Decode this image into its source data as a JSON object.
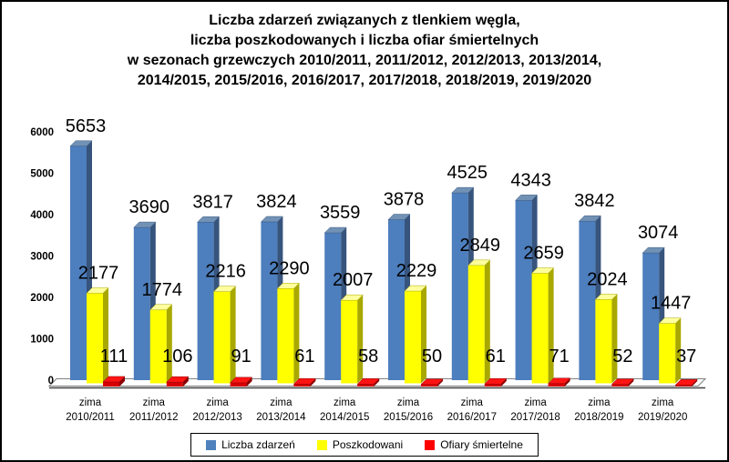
{
  "frame": {
    "background": "#FFFFFF",
    "border_color": "#000000"
  },
  "title_lines": [
    "Liczba zdarzeń związanych z tlenkiem węgla,",
    "liczba poszkodowanych i liczba ofiar śmiertelnych",
    "w sezonach grzewczych 2010/2011, 2011/2012, 2012/2013, 2013/2014,",
    "2014/2015, 2015/2016, 2016/2017, 2017/2018, 2018/2019, 2019/2020"
  ],
  "chart_data": {
    "type": "bar",
    "effect": "3d-column",
    "title": "Liczba zdarzeń związanych z tlenkiem węgla, liczba poszkodowanych i liczba ofiar śmiertelnych w sezonach grzewczych 2010/2011 - 2019/2020",
    "categories": [
      "zima 2010/2011",
      "zima 2011/2012",
      "zima 2012/2013",
      "zima 2013/2014",
      "zima 2014/2015",
      "zima 2015/2016",
      "zima 2016/2017",
      "zima 2017/2018",
      "zima 2018/2019",
      "zima 2019/2020"
    ],
    "series": [
      {
        "name": "Liczba zdarzeń",
        "values": [
          5653,
          3690,
          3817,
          3824,
          3559,
          3878,
          4525,
          4343,
          3842,
          3074
        ],
        "color": "#4D7EBD",
        "color_top": "#7192B5",
        "color_side": "#37547D",
        "legend_color": "#4F81BD"
      },
      {
        "name": "Poszkodowani",
        "values": [
          2177,
          1774,
          2216,
          2290,
          2007,
          2229,
          2849,
          2659,
          2024,
          1447
        ],
        "color": "#FFFF00",
        "color_top": "#FFFF9E",
        "color_side": "#A8A800",
        "legend_color": "#FFFF00"
      },
      {
        "name": "Ofiary śmiertelne",
        "values": [
          111,
          106,
          91,
          61,
          58,
          50,
          61,
          71,
          52,
          37
        ],
        "color": "#D60000",
        "color_top": "#FF1414",
        "color_side": "#8B0000",
        "legend_color": "#FF0000"
      }
    ],
    "xlabel": "",
    "ylabel": "",
    "ylim": [
      0,
      6000
    ],
    "ytick_step": 1000,
    "yticks": [
      0,
      1000,
      2000,
      3000,
      4000,
      5000,
      6000
    ],
    "grid": false,
    "data_labels": true,
    "legend_position": "bottom",
    "plot_background": "#FFFFFF",
    "axis_line_color": "#404040",
    "floor_stroke": "#808080"
  }
}
